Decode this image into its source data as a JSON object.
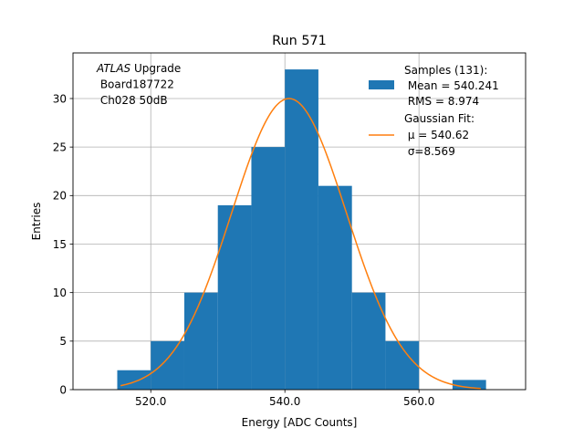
{
  "chart_data": {
    "type": "bar",
    "title": "Run 571",
    "xlabel": "Energy [ADC Counts]",
    "ylabel": "Entries",
    "xlim": [
      508.4,
      575.9
    ],
    "ylim": [
      0,
      34.7
    ],
    "xticks": [
      520,
      540,
      560
    ],
    "xtick_labels": [
      "520.0",
      "540.0",
      "560.0"
    ],
    "yticks": [
      0,
      5,
      10,
      15,
      20,
      25,
      30
    ],
    "ytick_labels": [
      "0",
      "5",
      "10",
      "15",
      "20",
      "25",
      "30"
    ],
    "grid": true,
    "bins": [
      {
        "x0": 515,
        "x1": 520,
        "count": 2
      },
      {
        "x0": 520,
        "x1": 525,
        "count": 5
      },
      {
        "x0": 525,
        "x1": 530,
        "count": 10
      },
      {
        "x0": 530,
        "x1": 535,
        "count": 19
      },
      {
        "x0": 535,
        "x1": 540,
        "count": 25
      },
      {
        "x0": 540,
        "x1": 545,
        "count": 33
      },
      {
        "x0": 545,
        "x1": 550,
        "count": 21
      },
      {
        "x0": 550,
        "x1": 555,
        "count": 10
      },
      {
        "x0": 555,
        "x1": 560,
        "count": 5
      },
      {
        "x0": 560,
        "x1": 565,
        "count": 0
      },
      {
        "x0": 565,
        "x1": 570,
        "count": 1
      }
    ],
    "fit": {
      "type": "gaussian",
      "mu": 540.62,
      "sigma": 8.569,
      "amplitude": 30.0,
      "xrange": [
        515.5,
        569.2
      ]
    },
    "annotation_lines": [
      {
        "italic": "ATLAS",
        "text": " Upgrade"
      },
      {
        "italic": "",
        "text": " Board187722"
      },
      {
        "italic": "",
        "text": " Ch028 50dB"
      }
    ],
    "legend": {
      "placement": "top-right",
      "hist_lines": [
        "Samples (131):",
        " Mean = 540.241",
        " RMS = 8.974"
      ],
      "fit_lines": [
        "Gaussian Fit:",
        " μ = 540.62",
        " σ=8.569"
      ]
    },
    "colors": {
      "bars": "#1f77b4",
      "fit": "#ff7f0e",
      "grid": "#b0b0b0"
    }
  }
}
